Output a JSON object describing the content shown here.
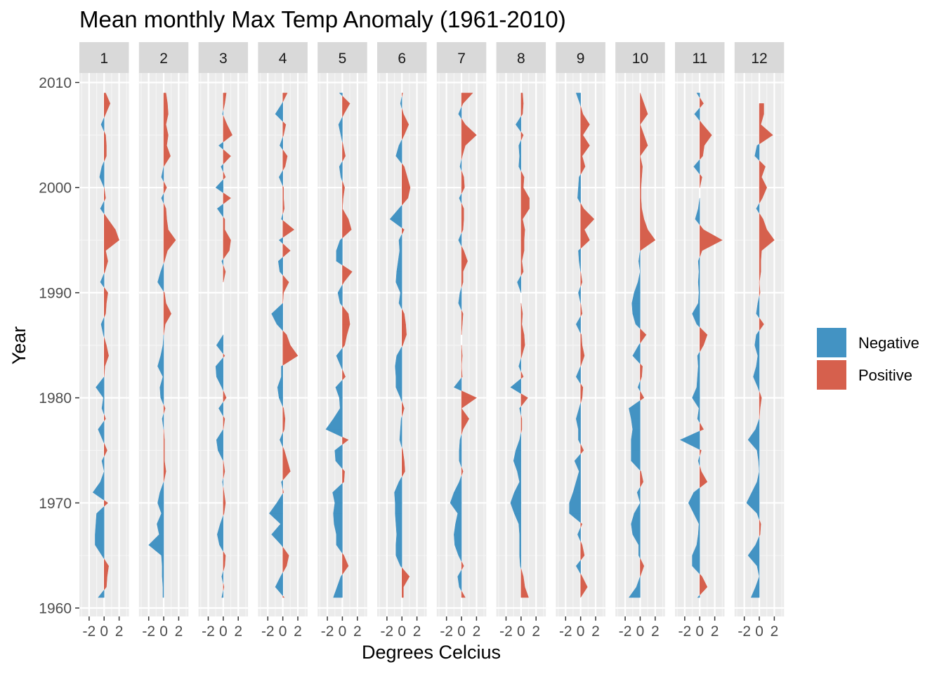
{
  "chart_data": {
    "type": "area",
    "title": "Mean monthly Max Temp Anomaly (1961-2010)",
    "xlabel": "Degrees Celcius",
    "ylabel": "Year",
    "panels": [
      "1",
      "2",
      "3",
      "4",
      "5",
      "6",
      "7",
      "8",
      "9",
      "10",
      "11",
      "12"
    ],
    "xlim": [
      -3.3,
      3.3
    ],
    "ylim": [
      1959.2,
      2010.9
    ],
    "x_ticks": [
      -2,
      0,
      2
    ],
    "x_tick_labels": [
      "-2",
      "0",
      "2"
    ],
    "y_ticks": [
      1960,
      1970,
      1980,
      1990,
      2000,
      2010
    ],
    "y_tick_labels": [
      "1960",
      "1970",
      "1980",
      "1990",
      "2000",
      "2010"
    ],
    "grid": true,
    "legend": {
      "position": "right",
      "entries": [
        {
          "label": "Negative",
          "color": "#4393c3"
        },
        {
          "label": "Positive",
          "color": "#d6604d"
        }
      ]
    },
    "years": [
      1961,
      1962,
      1963,
      1964,
      1965,
      1966,
      1967,
      1968,
      1969,
      1970,
      1971,
      1972,
      1973,
      1974,
      1975,
      1976,
      1977,
      1978,
      1979,
      1980,
      1981,
      1982,
      1983,
      1984,
      1985,
      1986,
      1987,
      1988,
      1989,
      1990,
      1991,
      1992,
      1993,
      1994,
      1995,
      1996,
      1997,
      1998,
      1999,
      2000,
      2001,
      2002,
      2003,
      2004,
      2005,
      2006,
      2007,
      2008,
      2009
    ],
    "series": [
      {
        "name": "1",
        "values": [
          -0.8,
          0.3,
          0.4,
          0.6,
          -0.3,
          -1.2,
          -1.2,
          -1.1,
          -1.0,
          0.5,
          -1.5,
          -0.5,
          0.0,
          -0.3,
          0.4,
          -0.2,
          -0.8,
          0.2,
          -0.3,
          -0.1,
          -1.1,
          0.0,
          0.1,
          0.6,
          0.3,
          -0.1,
          -0.4,
          0.2,
          0.3,
          0.5,
          -0.5,
          0.1,
          0.5,
          0.2,
          2.0,
          1.5,
          0.5,
          -0.5,
          0.2,
          0.0,
          -0.6,
          -0.3,
          0.3,
          0.3,
          0.2,
          -0.4,
          0.2,
          0.8,
          0.2
        ]
      },
      {
        "name": "2",
        "values": [
          -0.1,
          -0.1,
          -0.2,
          -0.2,
          -0.3,
          -2.0,
          -0.6,
          -0.9,
          -0.3,
          -0.8,
          -0.5,
          0.0,
          0.3,
          0.1,
          0.1,
          0.1,
          0.0,
          -0.2,
          0.2,
          -0.4,
          -0.5,
          -0.1,
          -0.8,
          -0.4,
          -0.1,
          0.0,
          0.2,
          1.0,
          0.3,
          0.1,
          -0.8,
          -0.4,
          0.1,
          0.5,
          1.6,
          0.6,
          0.4,
          0.3,
          -0.3,
          0.4,
          -0.3,
          0.0,
          0.9,
          0.4,
          0.6,
          0.3,
          0.6,
          0.5,
          0.3
        ]
      },
      {
        "name": "3",
        "values": [
          -0.2,
          0.1,
          -0.2,
          0.2,
          0.3,
          -0.5,
          -0.8,
          -0.4,
          0.1,
          0.3,
          0.1,
          -0.1,
          0.2,
          0.0,
          -0.7,
          -0.9,
          0.0,
          0.2,
          -0.6,
          0.4,
          -0.2,
          -0.9,
          -1.0,
          0.2,
          -0.9,
          0.0,
          0.0,
          0.0,
          0.0,
          0.0,
          0.0,
          0.3,
          -0.2,
          0.8,
          1.0,
          0.2,
          0.2,
          -0.8,
          1.0,
          -1.0,
          0.3,
          -0.3,
          1.0,
          -0.6,
          1.2,
          0.5,
          -0.1,
          0.2,
          0.4
        ]
      },
      {
        "name": "4",
        "values": [
          0.2,
          -1.0,
          -0.3,
          0.5,
          0.8,
          -0.2,
          -1.5,
          -0.3,
          -1.8,
          -0.8,
          0.1,
          -0.2,
          1.0,
          0.6,
          0.2,
          -0.4,
          0.2,
          0.3,
          0.1,
          -0.5,
          -0.7,
          -0.2,
          -0.2,
          2.0,
          1.0,
          0.5,
          -0.8,
          -1.5,
          0.0,
          0.1,
          0.8,
          -0.4,
          -0.6,
          1.0,
          -0.5,
          1.5,
          -0.2,
          0.2,
          0.1,
          0.1,
          -0.5,
          0.3,
          0.6,
          -0.4,
          0.1,
          0.4,
          -1.0,
          -0.1,
          0.6
        ]
      },
      {
        "name": "5",
        "values": [
          -1.2,
          -0.7,
          -0.2,
          0.8,
          0.2,
          -0.8,
          -0.8,
          -1.1,
          -1.2,
          -1.0,
          -1.3,
          0.2,
          0.3,
          -0.9,
          -1.0,
          0.8,
          -2.2,
          -1.2,
          -0.3,
          -0.4,
          -0.9,
          0.4,
          -0.2,
          -0.8,
          0.3,
          0.6,
          1.0,
          0.8,
          -0.3,
          -0.6,
          0.2,
          1.3,
          -0.8,
          -0.8,
          -0.3,
          1.2,
          0.8,
          0.0,
          0.1,
          0.3,
          -0.2,
          -0.4,
          0.4,
          0.1,
          -0.2,
          -0.5,
          0.2,
          1.0,
          -0.4
        ]
      },
      {
        "name": "6",
        "values": [
          0.2,
          0.2,
          1.0,
          -0.2,
          -0.8,
          -0.8,
          -0.7,
          -0.8,
          -0.9,
          -0.9,
          -1.0,
          -0.4,
          0.4,
          0.3,
          0.1,
          -0.3,
          -0.2,
          -0.1,
          0.3,
          -0.2,
          -0.8,
          -0.8,
          -0.9,
          -0.7,
          0.1,
          0.6,
          0.5,
          0.3,
          -0.4,
          -0.2,
          -0.8,
          -0.7,
          -0.5,
          -0.3,
          -0.4,
          0.3,
          -1.6,
          -0.4,
          0.8,
          1.1,
          0.7,
          0.3,
          -0.8,
          -0.4,
          0.3,
          0.9,
          0.2,
          -0.2,
          0.1
        ]
      },
      {
        "name": "7",
        "values": [
          0.5,
          -0.3,
          -0.5,
          0.3,
          -0.4,
          -0.9,
          -1.0,
          -0.8,
          -0.5,
          -1.5,
          -1.0,
          -0.3,
          0.2,
          -0.3,
          -0.3,
          -0.2,
          0.2,
          1.0,
          0.0,
          2.0,
          -1.0,
          0.1,
          0.0,
          0.1,
          0.0,
          0.0,
          0.1,
          0.2,
          -0.4,
          -0.2,
          0.2,
          0.2,
          0.8,
          0.3,
          -0.4,
          0.2,
          0.3,
          0.3,
          -0.3,
          0.4,
          0.3,
          -0.2,
          0.1,
          0.5,
          2.0,
          0.5,
          -0.4,
          0.2,
          1.5
        ]
      },
      {
        "name": "8",
        "values": [
          1.0,
          0.5,
          0.3,
          -0.1,
          -0.2,
          -0.2,
          -0.2,
          -0.3,
          -0.9,
          -1.4,
          -0.9,
          -0.2,
          -0.5,
          -1.0,
          -0.7,
          -0.2,
          0.1,
          0.1,
          -0.2,
          0.9,
          -1.4,
          0.3,
          -0.3,
          0.1,
          0.5,
          0.4,
          0.1,
          0.2,
          0.0,
          0.0,
          -0.5,
          0.3,
          0.1,
          0.4,
          0.4,
          0.5,
          0.2,
          1.1,
          1.1,
          0.3,
          0.4,
          -0.3,
          -0.2,
          -0.3,
          0.3,
          -0.7,
          0.2,
          0.3,
          0.2
        ]
      },
      {
        "name": "9",
        "values": [
          0.0,
          0.9,
          0.2,
          -0.6,
          0.5,
          0.2,
          -0.4,
          0.2,
          -1.5,
          -1.5,
          -1.0,
          -0.6,
          -0.2,
          -0.8,
          0.4,
          -0.3,
          -0.3,
          -0.6,
          -0.2,
          0.2,
          0.3,
          -0.6,
          0.0,
          0.5,
          0.2,
          0.1,
          -0.6,
          0.2,
          0.0,
          -0.3,
          0.2,
          0.0,
          -0.2,
          -0.3,
          1.2,
          0.5,
          1.8,
          0.4,
          -0.4,
          -0.3,
          -0.2,
          0.6,
          0.2,
          1.2,
          0.3,
          1.2,
          0.3,
          -0.1,
          -0.6
        ]
      },
      {
        "name": "10",
        "values": [
          -1.5,
          -0.5,
          0.0,
          0.5,
          -0.2,
          -0.2,
          -1.0,
          -1.2,
          -0.8,
          0.0,
          -0.4,
          0.4,
          0.1,
          -1.2,
          -1.2,
          -1.2,
          -1.0,
          -1.2,
          -1.5,
          0.5,
          -0.3,
          0.2,
          0.3,
          -1.0,
          -0.2,
          0.8,
          -0.6,
          -1.0,
          -1.1,
          -0.8,
          -0.3,
          0.0,
          -0.2,
          0.0,
          2.0,
          1.0,
          0.5,
          0.2,
          0.1,
          0.1,
          0.2,
          0.3,
          0.0,
          1.0,
          0.5,
          0.0,
          1.0,
          0.5,
          0.0
        ]
      },
      {
        "name": "11",
        "values": [
          -0.3,
          1.0,
          0.3,
          -1.0,
          -1.0,
          -0.4,
          -0.2,
          -0.1,
          -0.8,
          -1.5,
          -0.8,
          1.0,
          0.2,
          -0.2,
          0.2,
          -2.6,
          0.5,
          -0.3,
          -0.1,
          -1.0,
          -0.4,
          -0.3,
          -0.2,
          -0.3,
          0.5,
          1.0,
          -0.4,
          -1.0,
          -0.2,
          -0.1,
          -0.2,
          -0.1,
          -0.2,
          0.3,
          3.0,
          0.5,
          -0.6,
          -0.2,
          0.0,
          0.0,
          0.3,
          -0.8,
          0.4,
          0.6,
          1.6,
          0.4,
          -0.7,
          0.5,
          -0.4
        ]
      },
      {
        "name": "12",
        "values": [
          -1.1,
          -0.5,
          0.0,
          -0.3,
          -1.5,
          -0.5,
          0.1,
          0.2,
          -0.3,
          -1.7,
          -1.0,
          -0.3,
          0.0,
          -0.1,
          -0.3,
          -1.5,
          -0.5,
          0.0,
          0.1,
          0.3,
          -0.2,
          -0.8,
          -0.4,
          -0.2,
          -0.6,
          -0.4,
          0.6,
          -0.4,
          -0.2,
          0.1,
          0.0,
          0.2,
          0.2,
          0.3,
          2.0,
          1.0,
          0.5,
          -0.4,
          0.4,
          1.0,
          0.3,
          0.8,
          -0.6,
          -0.3,
          1.8,
          0.2,
          0.6,
          0.6,
          null
        ]
      }
    ]
  }
}
